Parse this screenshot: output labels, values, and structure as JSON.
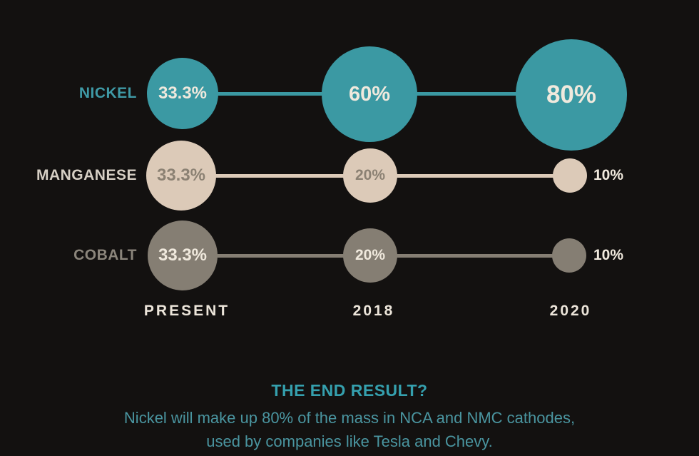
{
  "chart_data": {
    "type": "bubble",
    "title": "",
    "categories": [
      "PRESENT",
      "2018",
      "2020"
    ],
    "series": [
      {
        "name": "NICKEL",
        "values": [
          33.3,
          60,
          80
        ],
        "labels": [
          "33.3%",
          "60%",
          "80%"
        ],
        "color": "#3b99a3"
      },
      {
        "name": "MANGANESE",
        "values": [
          33.3,
          20,
          10
        ],
        "labels": [
          "33.3%",
          "20%",
          "10%"
        ],
        "color": "#dccab8"
      },
      {
        "name": "COBALT",
        "values": [
          33.3,
          20,
          10
        ],
        "labels": [
          "33.3%",
          "20%",
          "10%"
        ],
        "color": "#857e73"
      }
    ],
    "layout_hints": {
      "bubble_area_proportional_to_value": true,
      "rows_connected_by_lines": true,
      "legend_position": "left-row-labels"
    }
  },
  "footer": {
    "title": "THE END RESULT?",
    "line1": "Nickel will make up 80% of the mass in NCA and NMC cathodes,",
    "line2": "used by companies like Tesla and Chevy."
  },
  "colors": {
    "background": "#131110",
    "nickel": "#3b99a3",
    "manganese": "#dccab8",
    "cobalt": "#857e73",
    "cream_text": "#f0e9dd",
    "graybrown_text": "#8b8173",
    "footer_teal": "#4a95a0"
  }
}
